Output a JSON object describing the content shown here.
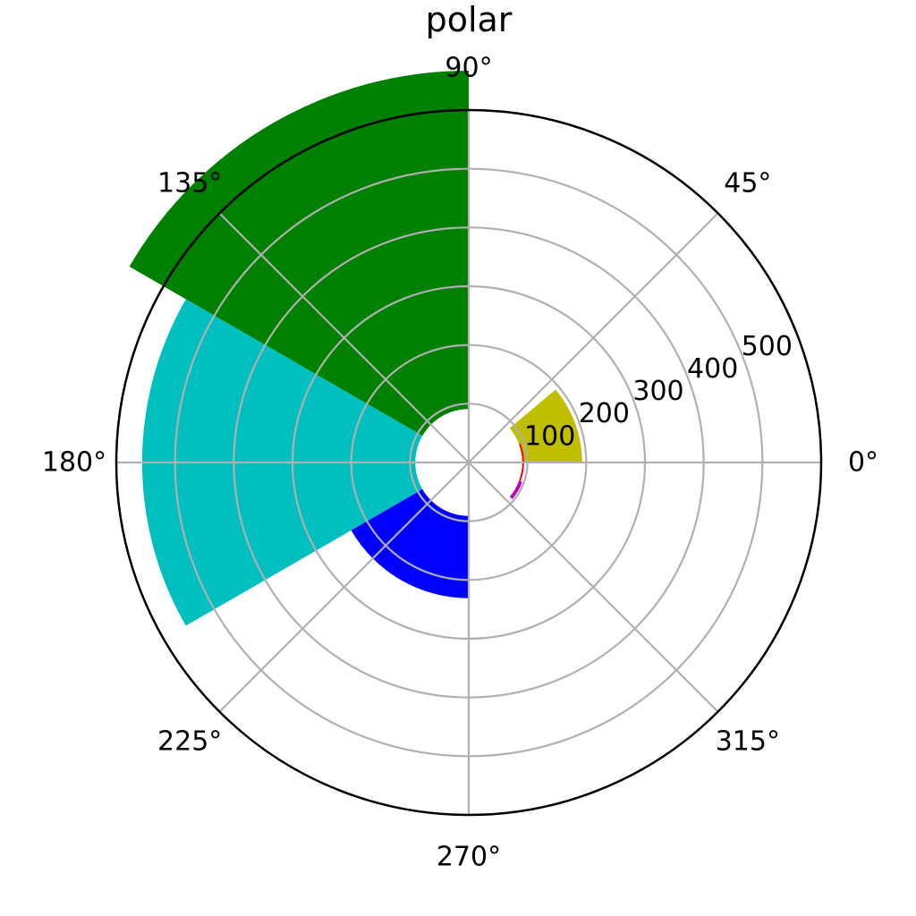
{
  "chart_data": {
    "type": "bar",
    "projection": "polar",
    "title": "polar",
    "theta_ticks": [
      "0°",
      "45°",
      "90°",
      "135°",
      "180°",
      "225°",
      "270°",
      "315°"
    ],
    "r_ticks": [
      "100",
      "200",
      "300",
      "400",
      "500"
    ],
    "r_tick_values": [
      100,
      200,
      300,
      400,
      500
    ],
    "rlim": [
      0,
      600
    ],
    "bar_bottom": 91,
    "grid": true,
    "bars": [
      {
        "theta_start": 0,
        "theta_end": 40,
        "value": 102,
        "color": "#bfbf00"
      },
      {
        "theta_start": -20,
        "theta_end": 20,
        "value": 3,
        "color": "#ff0000"
      },
      {
        "theta_start": -40,
        "theta_end": -20,
        "value": 6,
        "color": "#bf00bf"
      },
      {
        "theta_start": 90,
        "theta_end": 150,
        "value": 576,
        "color": "#008000"
      },
      {
        "theta_start": 150,
        "theta_end": 210,
        "value": 465,
        "color": "#00bfbf"
      },
      {
        "theta_start": 210,
        "theta_end": 270,
        "value": 140,
        "color": "#0000ff"
      }
    ]
  }
}
